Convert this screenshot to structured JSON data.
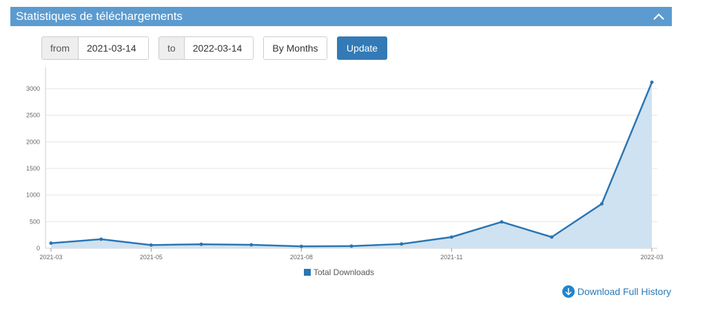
{
  "panel": {
    "title": "Statistiques de téléchargements",
    "collapse_icon": "chevron-up-icon"
  },
  "filters": {
    "from_label": "from",
    "from_value": "2021-03-14",
    "to_label": "to",
    "to_value": "2022-03-14",
    "period_button": "By Months",
    "update_button": "Update"
  },
  "chart_data": {
    "type": "area",
    "x": [
      "2021-03",
      "2021-04",
      "2021-05",
      "2021-06",
      "2021-07",
      "2021-08",
      "2021-09",
      "2021-10",
      "2021-11",
      "2021-12",
      "2022-01",
      "2022-02",
      "2022-03"
    ],
    "x_tick_labels": [
      "2021-03",
      "2021-05",
      "2021-08",
      "2021-11",
      "2022-03"
    ],
    "y_ticks": [
      "0",
      "500",
      "1000",
      "1500",
      "2000",
      "2500",
      "3000"
    ],
    "series": [
      {
        "name": "Total Downloads",
        "values": [
          95,
          170,
          60,
          75,
          65,
          35,
          40,
          80,
          210,
          495,
          210,
          835,
          3120
        ]
      }
    ],
    "ylim": [
      0,
      3400
    ],
    "grid": true,
    "legend_position": "bottom",
    "line_color": "#2a75b3",
    "fill_color": "#cfe2f1"
  },
  "legend": {
    "label": "Total Downloads"
  },
  "download": {
    "label": "Download Full History",
    "icon": "download-arrow-icon"
  },
  "colors": {
    "header": "#5b9bd0",
    "primary_button": "#337ab7",
    "link": "#2a7ab8"
  }
}
